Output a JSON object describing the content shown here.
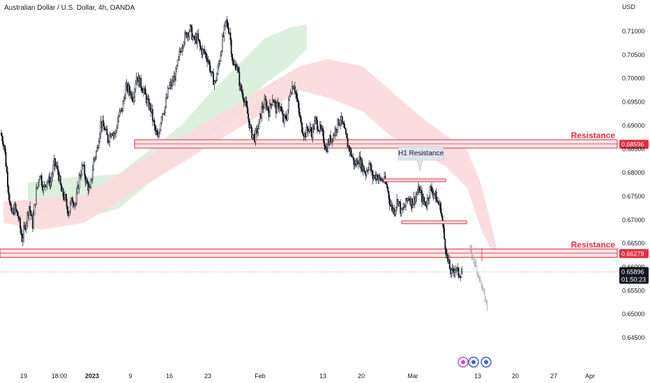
{
  "header": {
    "title": "Australian Dollar / U.S. Dollar, 4h, OANDA",
    "currency": "USD"
  },
  "colors": {
    "resistance": "#e0303f",
    "zone_fill": "#fde4e6",
    "cloud_green": "#d7eed9",
    "cloud_red": "#fbd9dc",
    "candle": "#131722",
    "projection": "#a0a4ad",
    "last_price_bg": "#131722"
  },
  "chart_data": {
    "type": "candlestick",
    "symbol": "AUD/USD",
    "timeframe": "4h",
    "ylim": [
      0.6425,
      0.7125
    ],
    "y_ticks": [
      "0.71000",
      "0.70500",
      "0.70000",
      "0.69500",
      "0.69000",
      "0.68500",
      "0.68000",
      "0.67500",
      "0.67000",
      "0.66500",
      "0.66000",
      "0.65500",
      "0.65000",
      "0.64500"
    ],
    "x_ticks": [
      {
        "label": "19",
        "bold": false
      },
      {
        "label": "18:00",
        "bold": false
      },
      {
        "label": "2023",
        "bold": true
      },
      {
        "label": "9",
        "bold": false
      },
      {
        "label": "16",
        "bold": false
      },
      {
        "label": "23",
        "bold": false
      },
      {
        "label": "Feb",
        "bold": false
      },
      {
        "label": "13",
        "bold": false
      },
      {
        "label": "20",
        "bold": false
      },
      {
        "label": "Mar",
        "bold": false
      },
      {
        "label": "13",
        "bold": false
      },
      {
        "label": "20",
        "bold": false
      },
      {
        "label": "27",
        "bold": false
      },
      {
        "label": "Apr",
        "bold": false
      }
    ],
    "price_path": [
      0.6885,
      0.686,
      0.678,
      0.671,
      0.6725,
      0.6705,
      0.666,
      0.669,
      0.673,
      0.669,
      0.676,
      0.68,
      0.6765,
      0.6785,
      0.678,
      0.682,
      0.6805,
      0.676,
      0.6745,
      0.6715,
      0.6745,
      0.6735,
      0.679,
      0.6815,
      0.678,
      0.676,
      0.6825,
      0.685,
      0.6905,
      0.6895,
      0.687,
      0.689,
      0.688,
      0.692,
      0.6935,
      0.698,
      0.6975,
      0.696,
      0.7005,
      0.699,
      0.6975,
      0.695,
      0.6935,
      0.6895,
      0.687,
      0.6925,
      0.694,
      0.698,
      0.699,
      0.701,
      0.705,
      0.708,
      0.7095,
      0.7105,
      0.708,
      0.7085,
      0.706,
      0.7055,
      0.704,
      0.7005,
      0.699,
      0.703,
      0.708,
      0.712,
      0.71,
      0.7025,
      0.703,
      0.698,
      0.696,
      0.6925,
      0.6885,
      0.6875,
      0.6895,
      0.6935,
      0.695,
      0.693,
      0.696,
      0.6935,
      0.6945,
      0.691,
      0.692,
      0.6975,
      0.699,
      0.6945,
      0.69,
      0.688,
      0.6895,
      0.6885,
      0.691,
      0.6895,
      0.688,
      0.685,
      0.687,
      0.688,
      0.69,
      0.6915,
      0.689,
      0.686,
      0.684,
      0.6815,
      0.683,
      0.6815,
      0.68,
      0.682,
      0.679,
      0.6795,
      0.6785,
      0.6785,
      0.677,
      0.673,
      0.672,
      0.6745,
      0.6715,
      0.673,
      0.675,
      0.6735,
      0.675,
      0.6765,
      0.674,
      0.6735,
      0.6765,
      0.676,
      0.674,
      0.6725,
      0.666,
      0.661,
      0.6585,
      0.66,
      0.6585,
      0.659
    ],
    "projection_path": [
      0.664,
      0.6625,
      0.661,
      0.6595,
      0.6575,
      0.6555,
      0.6535,
      0.6515
    ],
    "levels": [
      {
        "price": 0.68596,
        "label": "Resistance",
        "tag": "0.68596"
      },
      {
        "price": 0.66279,
        "label": "Resistance",
        "tag": "0.66279"
      }
    ],
    "h1_resistance": {
      "label": "H1 Resistance",
      "upper_price": 0.6784,
      "lower_price": 0.6695
    },
    "last_price": {
      "value": "0.65896",
      "countdown": "01:50:23"
    }
  }
}
